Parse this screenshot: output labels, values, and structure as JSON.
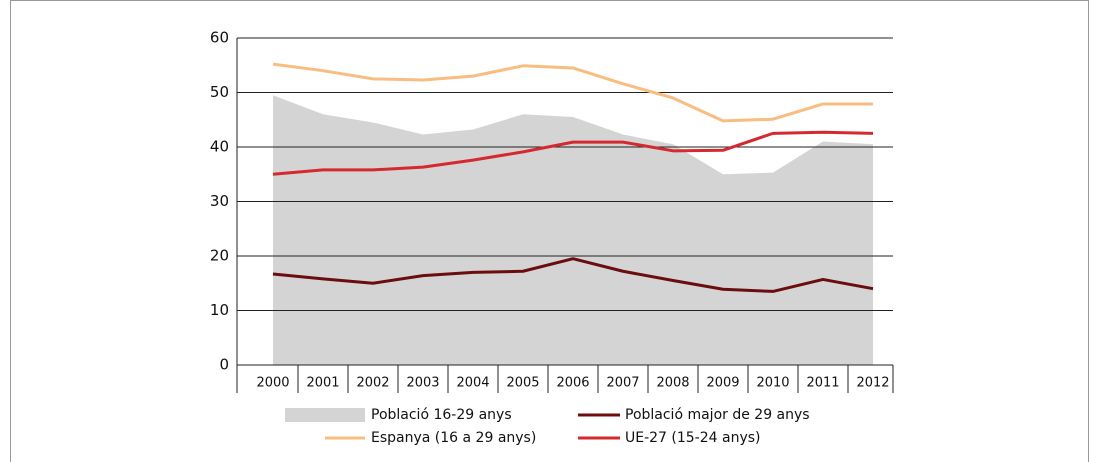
{
  "chart_data": {
    "type": "line",
    "categories": [
      "2000",
      "2001",
      "2002",
      "2003",
      "2004",
      "2005",
      "2006",
      "2007",
      "2008",
      "2009",
      "2010",
      "2011",
      "2012"
    ],
    "ylim": [
      0,
      60
    ],
    "yticks": [
      0,
      10,
      20,
      30,
      40,
      50,
      60
    ],
    "grid": true,
    "series": [
      {
        "name": "Població 16-29 anys",
        "type": "area",
        "color": "#d4d4d4",
        "values": [
          49.5,
          46,
          44.5,
          42.3,
          43.2,
          46,
          45.5,
          42.3,
          40.5,
          35,
          35.3,
          41,
          40.5
        ]
      },
      {
        "name": "Població major de 29 anys",
        "type": "line",
        "color": "#6b0d0f",
        "values": [
          16.7,
          15.8,
          15,
          16.4,
          17,
          17.2,
          19.5,
          17.2,
          15.5,
          13.9,
          13.5,
          15.7,
          14
        ]
      },
      {
        "name": "Espanya (16 a 29 anys)",
        "type": "line",
        "color": "#f8bd80",
        "values": [
          55.2,
          54,
          52.5,
          52.3,
          53,
          54.9,
          54.5,
          51.6,
          49,
          44.8,
          45.1,
          47.9,
          47.9
        ]
      },
      {
        "name": "UE-27 (15-24 anys)",
        "type": "line",
        "color": "#d42a2f",
        "values": [
          35,
          35.8,
          35.8,
          36.3,
          37.6,
          39.1,
          40.9,
          40.9,
          39.3,
          39.4,
          42.5,
          42.7,
          42.5
        ]
      }
    ]
  }
}
